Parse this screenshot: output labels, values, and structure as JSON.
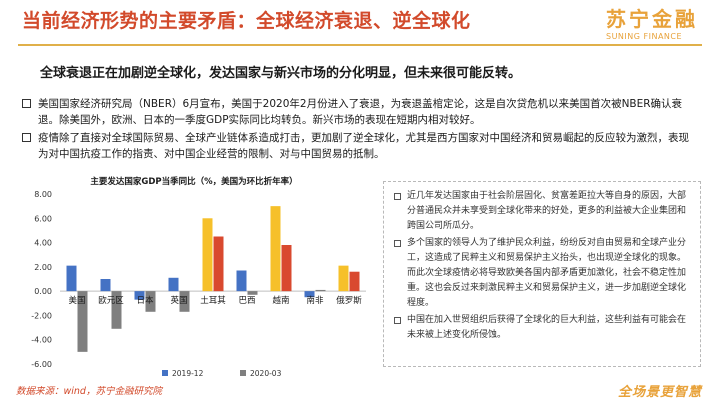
{
  "header": {
    "title": "当前经济形势的主要矛盾：全球经济衰退、逆全球化",
    "logo_cn": "苏宁金融",
    "logo_en": "SUNING FINANCE"
  },
  "subheadline": "全球衰退正在加剧逆全球化，发达国家与新兴市场的分化明显，但未来很可能反转。",
  "bullets": [
    "美国国家经济研究局（NBER）6月宣布，美国于2020年2月份进入了衰退，为衰退盖棺定论，这是自次贷危机以来美国首次被NBER确认衰退。除美国外，欧洲、日本的一季度GDP实际同比均转负。新兴市场的表现在短期内相对较好。",
    "疫情除了直接对全球国际贸易、全球产业链体系造成打击，更加剧了逆全球化，尤其是西方国家对中国经济和贸易崛起的反应较为激烈，表现为对中国抗疫工作的指责、对中国企业经营的限制、对与中国贸易的抵制。"
  ],
  "notes": [
    "近几年发达国家由于社会阶层固化、贫富差距拉大等自身的原因，大部分普通民众并未享受到全球化带来的好处，更多的利益被大企业集团和跨国公司所瓜分。",
    "多个国家的领导人为了维护民众利益，纷纷反对自由贸易和全球产业分工，这造成了民粹主义和贸易保护主义抬头，也出现逆全球化的现象。而此次全球疫情必将导致欧美各国内部矛盾更加激化，社会不稳定性加重。这也会反过来刺激民粹主义和贸易保护主义，进一步加剧逆全球化程度。",
    "中国在加入世贸组织后获得了全球化的巨大利益，这些利益有可能会在未来被上述变化所侵蚀。"
  ],
  "footer": {
    "source": "数据来源：wind，苏宁金融研究院",
    "slogan": "全场景更智慧"
  },
  "colors": {
    "accent": "#d24a2b",
    "brand": "#e8a23a"
  },
  "chart_data": {
    "type": "bar",
    "title": "主要发达国家GDP当季同比（%，美国为环比折年率）",
    "categories": [
      "美国",
      "欧元区",
      "日本",
      "英国",
      "土耳其",
      "巴西",
      "越南",
      "南非",
      "俄罗斯"
    ],
    "series": [
      {
        "name": "2019-12",
        "values": [
          2.1,
          1.0,
          -0.7,
          1.1,
          6.0,
          1.7,
          7.0,
          -0.5,
          2.1
        ]
      },
      {
        "name": "2020-03",
        "values": [
          -5.0,
          -3.1,
          -1.7,
          -1.7,
          4.5,
          -0.3,
          3.8,
          0.1,
          1.6
        ]
      }
    ],
    "highlight_categories": [
      "土耳其",
      "越南",
      "俄罗斯"
    ],
    "colors_default": [
      "#4472c4",
      "#7f7f7f"
    ],
    "colors_highlight": [
      "#f6c02a",
      "#d9492f"
    ],
    "ylim": [
      -6.0,
      8.0
    ],
    "yticks": [
      "8.00",
      "6.00",
      "4.00",
      "2.00",
      "0.00",
      "-2.00",
      "-4.00",
      "-6.00"
    ],
    "legend_position": "bottom"
  }
}
